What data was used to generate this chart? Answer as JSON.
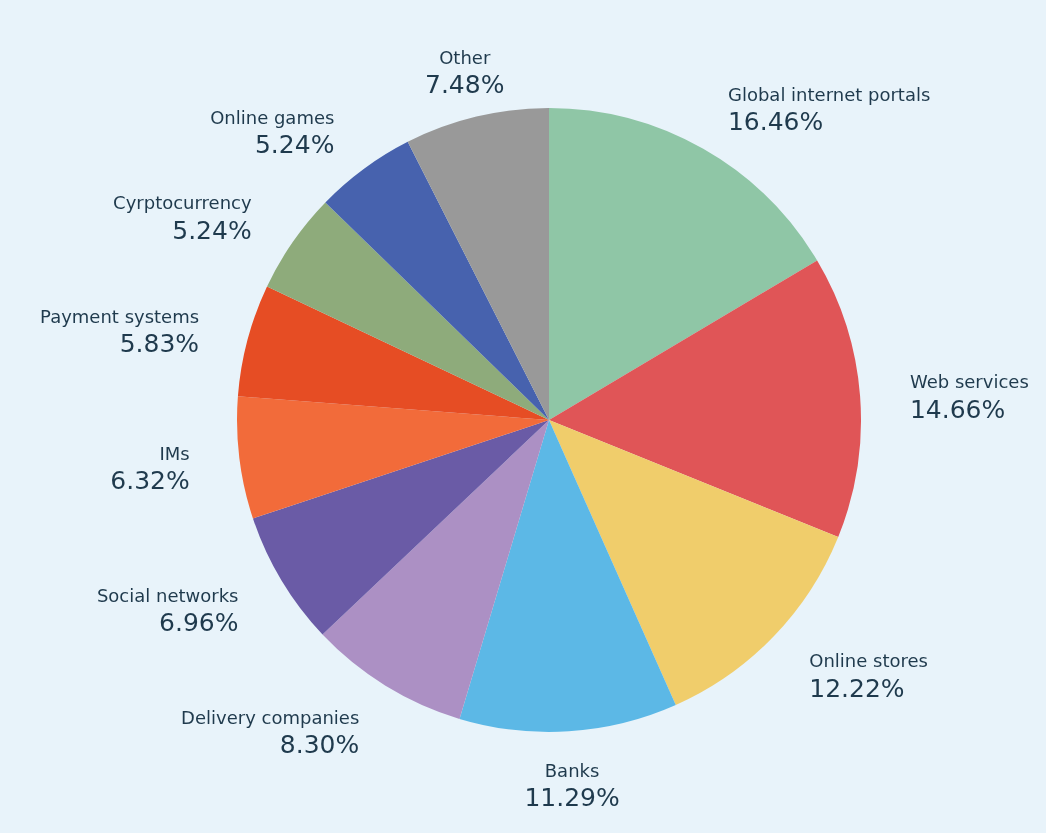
{
  "chart_data": {
    "type": "pie",
    "categories": [
      "Global internet portals",
      "Web services",
      "Online stores",
      "Banks",
      "Delivery companies",
      "Social networks",
      "IMs",
      "Payment systems",
      "Cyrptocurrency",
      "Online games",
      "Other"
    ],
    "values": [
      16.46,
      14.66,
      12.22,
      11.29,
      8.3,
      6.96,
      6.32,
      5.83,
      5.24,
      5.24,
      7.48
    ],
    "value_labels": [
      "16.46%",
      "14.66%",
      "12.22%",
      "11.29%",
      "8.30%",
      "6.96%",
      "6.32%",
      "5.83%",
      "5.24%",
      "5.24%",
      "7.48%"
    ],
    "colors": [
      "#8fc6a6",
      "#e05557",
      "#f0cd6b",
      "#5cb8e6",
      "#ac90c4",
      "#6a5ba6",
      "#f26b3a",
      "#e64d24",
      "#8eab7b",
      "#4762ae",
      "#999999"
    ],
    "legend": false
  }
}
